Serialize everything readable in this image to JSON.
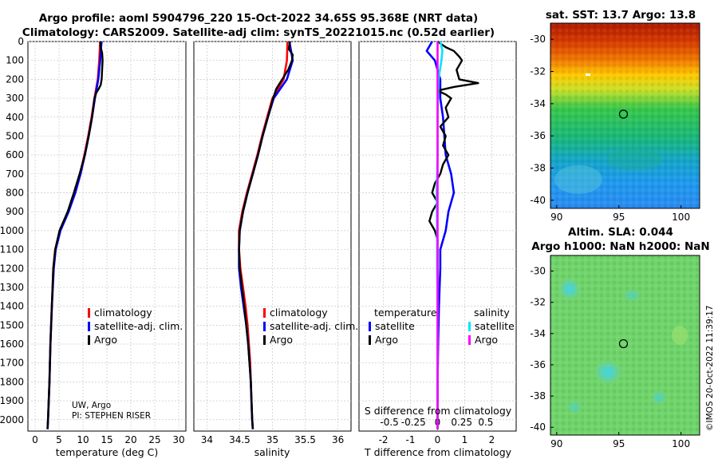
{
  "titles": {
    "line1": "Argo profile: aoml 5904796_220 15-Oct-2022 34.65S 95.368E (NRT data)",
    "line2": "Climatology: CARS2009. Satellite-adj clim: synTS_20221015.nc (0.52d earlier)"
  },
  "depth_ticks": [
    "0",
    "100",
    "200",
    "300",
    "400",
    "500",
    "600",
    "700",
    "800",
    "900",
    "1000",
    "1100",
    "1200",
    "1300",
    "1400",
    "1500",
    "1600",
    "1700",
    "1800",
    "1900",
    "2000"
  ],
  "colors": {
    "climatology": "#ff0000",
    "satellite": "#0000ff",
    "argo": "#000000",
    "cyan": "#00e5ff",
    "magenta": "#ff00ff"
  },
  "chart_data": [
    {
      "type": "line",
      "id": "temperature",
      "xlabel": "temperature (deg C)",
      "ylabel": "depth",
      "xlim": [
        -1.5,
        31.5
      ],
      "ylim": [
        2060,
        0
      ],
      "xticks": [
        "0",
        "5",
        "10",
        "15",
        "20",
        "25",
        "30"
      ],
      "legend": [
        "climatology",
        "satellite-adj. clim.",
        "Argo"
      ],
      "annotation": [
        "UW, Argo",
        "PI: STEPHEN RISER"
      ],
      "series": [
        {
          "name": "climatology",
          "depth": [
            0,
            50,
            100,
            200,
            300,
            400,
            500,
            600,
            700,
            800,
            900,
            1000,
            1100,
            1200,
            1400,
            1600,
            1800,
            2000,
            2050
          ],
          "values": [
            13.6,
            13.5,
            13.4,
            13.1,
            12.4,
            11.8,
            11.1,
            10.3,
            9.4,
            8.3,
            6.9,
            5.2,
            4.2,
            3.8,
            3.5,
            3.2,
            3.0,
            2.7,
            2.6
          ]
        },
        {
          "name": "satellite-adj. clim.",
          "depth": [
            0,
            50,
            100,
            200,
            300,
            400,
            500,
            600,
            700,
            800,
            900,
            1000,
            1100,
            1200,
            1400,
            1600,
            1800,
            2000,
            2050
          ],
          "values": [
            13.9,
            13.7,
            13.6,
            13.2,
            12.5,
            11.9,
            11.2,
            10.4,
            9.5,
            8.4,
            7.0,
            5.3,
            4.3,
            3.9,
            3.5,
            3.2,
            3.0,
            2.7,
            2.6
          ]
        },
        {
          "name": "Argo",
          "depth": [
            0,
            30,
            60,
            100,
            150,
            200,
            230,
            250,
            270,
            300,
            400,
            500,
            600,
            700,
            800,
            900,
            1000,
            1100,
            1200,
            1400,
            1600,
            1800,
            2000,
            2050
          ],
          "values": [
            13.6,
            13.7,
            14.0,
            14.1,
            14.0,
            13.9,
            13.7,
            13.3,
            12.8,
            12.4,
            11.9,
            11.2,
            10.4,
            9.3,
            8.1,
            6.8,
            5.1,
            4.2,
            3.8,
            3.5,
            3.2,
            3.0,
            2.7,
            2.6
          ]
        }
      ]
    },
    {
      "type": "line",
      "id": "salinity",
      "xlabel": "salinity",
      "ylabel": "depth",
      "xlim": [
        33.8,
        36.2
      ],
      "ylim": [
        2060,
        0
      ],
      "xticks": [
        "34",
        "34.5",
        "35",
        "35.5",
        "36"
      ],
      "legend": [
        "climatology",
        "satellite-adj. clim.",
        "Argo"
      ],
      "series": [
        {
          "name": "climatology",
          "depth": [
            0,
            100,
            200,
            300,
            400,
            500,
            600,
            700,
            800,
            900,
            1000,
            1100,
            1200,
            1300,
            1400,
            1500,
            1600,
            1700,
            1800,
            1900,
            2000,
            2050
          ],
          "values": [
            35.23,
            35.22,
            35.17,
            35.0,
            34.92,
            34.84,
            34.77,
            34.69,
            34.61,
            34.54,
            34.49,
            34.49,
            34.51,
            34.55,
            34.59,
            34.62,
            34.64,
            34.66,
            34.67,
            34.68,
            34.69,
            34.7
          ]
        },
        {
          "name": "satellite-adj. clim.",
          "depth": [
            0,
            100,
            200,
            300,
            400,
            500,
            600,
            700,
            800,
            900,
            1000,
            1100,
            1200,
            1300,
            1400,
            1500,
            1600,
            1700,
            1800,
            1900,
            2000,
            2050
          ],
          "values": [
            35.26,
            35.31,
            35.22,
            35.02,
            34.93,
            34.85,
            34.78,
            34.7,
            34.62,
            34.55,
            34.5,
            34.49,
            34.49,
            34.52,
            34.56,
            34.6,
            34.63,
            34.65,
            34.67,
            34.68,
            34.69,
            34.7
          ]
        },
        {
          "name": "Argo",
          "depth": [
            0,
            40,
            70,
            100,
            150,
            200,
            250,
            300,
            400,
            500,
            600,
            700,
            800,
            900,
            1000,
            1100,
            1200,
            1400,
            1600,
            1800,
            2000,
            2050
          ],
          "values": [
            35.27,
            35.25,
            35.31,
            35.3,
            35.24,
            35.15,
            35.06,
            35.01,
            34.93,
            34.85,
            34.78,
            34.7,
            34.62,
            34.55,
            34.5,
            34.49,
            34.5,
            34.57,
            34.63,
            34.67,
            34.69,
            34.7
          ]
        }
      ]
    },
    {
      "type": "line",
      "id": "difference",
      "xlabel": "T difference from climatology",
      "x2label": "S difference from climatology",
      "ylabel": "depth",
      "xlim": [
        -2.9,
        2.9
      ],
      "ylim": [
        2060,
        0
      ],
      "xticks": [
        "-2",
        "-1",
        "0",
        "1",
        "2"
      ],
      "x2ticks": [
        "-0.5",
        "-0.25",
        "0",
        "0.25",
        "0.5"
      ],
      "legend_temperature": {
        "title": "temperature",
        "items": [
          "satellite",
          "Argo"
        ]
      },
      "legend_salinity": {
        "title": "salinity",
        "items": [
          "satellite",
          "Argo"
        ]
      },
      "series": [
        {
          "name": "T satellite",
          "depth": [
            0,
            50,
            100,
            200,
            300,
            400,
            500,
            600,
            700,
            800,
            900,
            1000,
            1100,
            1200,
            1400,
            1600,
            1800,
            2000,
            2050
          ],
          "values": [
            -0.2,
            -0.4,
            -0.1,
            0.1,
            0.1,
            0.2,
            0.25,
            0.3,
            0.5,
            0.6,
            0.4,
            0.3,
            0.1,
            0.1,
            0.05,
            0.02,
            0.0,
            0.0,
            0.0
          ]
        },
        {
          "name": "T Argo",
          "depth": [
            0,
            30,
            50,
            80,
            100,
            150,
            200,
            220,
            240,
            260,
            280,
            300,
            350,
            400,
            450,
            500,
            550,
            600,
            650,
            700,
            750,
            800,
            850,
            900,
            950,
            1000,
            1050,
            1100,
            1200,
            1400,
            1600,
            1800,
            2000,
            2050
          ],
          "values": [
            0.0,
            0.3,
            0.6,
            0.8,
            0.9,
            0.7,
            0.8,
            1.5,
            0.6,
            0.0,
            0.3,
            0.5,
            0.3,
            0.4,
            0.1,
            0.3,
            0.2,
            0.4,
            0.2,
            0.1,
            -0.1,
            -0.2,
            0.0,
            -0.2,
            -0.3,
            -0.1,
            0.0,
            0.0,
            0.0,
            0.0,
            0.0,
            0.0,
            0.0,
            0.0
          ]
        },
        {
          "name": "S satellite",
          "depth": [
            0,
            50,
            100,
            200,
            300,
            400,
            600,
            800,
            1000,
            1200,
            1400,
            1600,
            1800,
            2000,
            2050
          ],
          "values": [
            0.03,
            0.05,
            0.04,
            0.01,
            0.005,
            0.0,
            0.0,
            -0.01,
            -0.005,
            -0.005,
            0.0,
            0.0,
            0.0,
            0.0,
            0.0
          ]
        },
        {
          "name": "S Argo",
          "depth": [
            0,
            100,
            200,
            400,
            600,
            800,
            1000,
            1200,
            1400,
            1600,
            1800,
            2000,
            2050
          ],
          "values": [
            0.0,
            0.0,
            0.0,
            0.0,
            0.0,
            0.0,
            0.0,
            0.0,
            0.0,
            0.0,
            0.0,
            0.0,
            0.0
          ]
        }
      ]
    },
    {
      "type": "heatmap",
      "id": "sst-map",
      "title": "sat. SST: 13.7 Argo: 13.8",
      "xlim": [
        89.5,
        101.5
      ],
      "ylim": [
        -40.5,
        -29
      ]
    },
    {
      "type": "heatmap",
      "id": "sla-map",
      "title1": "Altim. SLA: 0.044",
      "title2": "Argo h1000: NaN h2000: NaN",
      "xlim": [
        89.5,
        101.5
      ],
      "ylim": [
        -40.5,
        -29
      ]
    }
  ],
  "maps": {
    "xticks": [
      "90",
      "95",
      "100"
    ],
    "yticks": [
      "-30",
      "-32",
      "-34",
      "-36",
      "-38",
      "-40"
    ],
    "argo_position": {
      "lon": 95.368,
      "lat": -34.65
    }
  },
  "watermark": "©IMOS 20-Oct-2022 11:39:17"
}
